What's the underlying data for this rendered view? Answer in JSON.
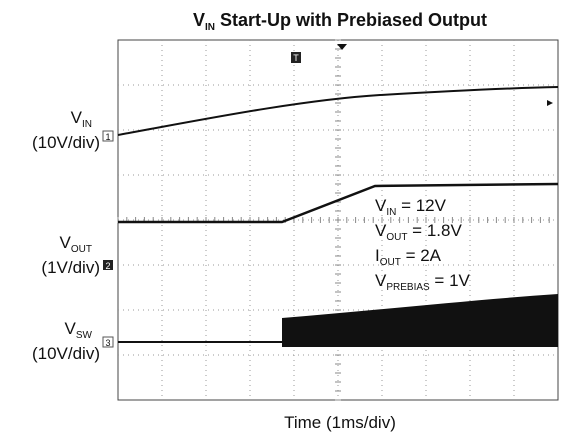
{
  "title": {
    "symbol": "V",
    "sub": "IN",
    "text": " Start-Up with Prebiased Output"
  },
  "channels": [
    {
      "symbol": "V",
      "sub": "IN",
      "scale": "(10V/div)",
      "marker": "1"
    },
    {
      "symbol": "V",
      "sub": "OUT",
      "scale": "(1V/div)",
      "marker": "2"
    },
    {
      "symbol": "V",
      "sub": "SW",
      "scale": "(10V/div)",
      "marker": "3"
    }
  ],
  "annotations": [
    {
      "symbol": "V",
      "sub": "IN",
      "text": " = 12V"
    },
    {
      "symbol": "V",
      "sub": "OUT",
      "text": " = 1.8V"
    },
    {
      "symbol": "I",
      "sub": "OUT",
      "text": " = 2A"
    },
    {
      "symbol": "V",
      "sub": "PREBIAS",
      "text": " = 1V"
    }
  ],
  "x_label": "Time (1ms/div)"
}
